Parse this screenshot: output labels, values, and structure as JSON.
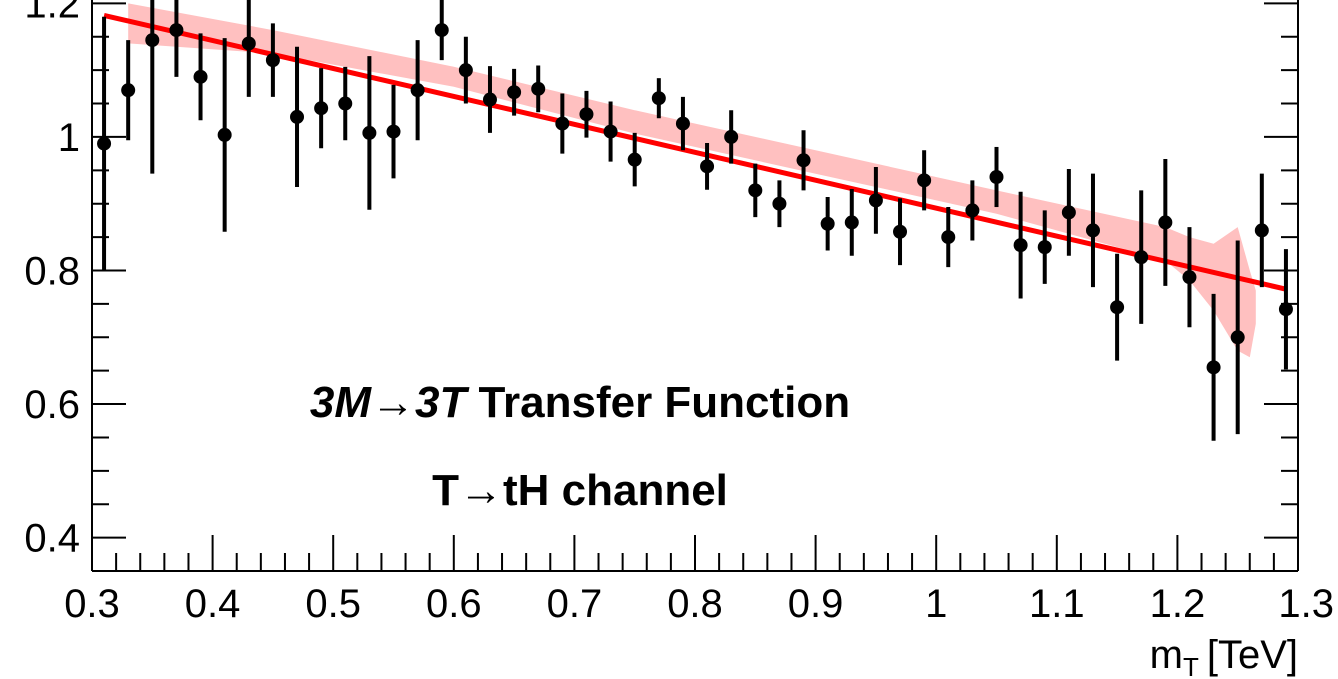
{
  "chart_data": {
    "type": "scatter",
    "title": "",
    "xlabel": "m_T [TeV]",
    "xlabel_main": "m",
    "xlabel_sub": "T",
    "xlabel_unit": "[TeV]",
    "ylabel": "",
    "xlim": [
      0.3,
      1.3
    ],
    "ylim": [
      0.35,
      1.235
    ],
    "x_ticks": [
      0.3,
      0.4,
      0.5,
      0.6,
      0.7,
      0.8,
      0.9,
      1.0,
      1.1,
      1.2,
      1.3
    ],
    "x_tick_labels": [
      "0.3",
      "0.4",
      "0.5",
      "0.6",
      "0.7",
      "0.8",
      "0.9",
      "1",
      "1.1",
      "1.2",
      "1.3"
    ],
    "y_ticks": [
      0.4,
      0.6,
      0.8,
      1.0,
      1.2
    ],
    "y_tick_labels": [
      "0.4",
      "0.6",
      "0.8",
      "1",
      "1.2"
    ],
    "annotations": {
      "line1_italic": "3M→3T",
      "line1_rest": " Transfer Function",
      "line2": "T→tH channel"
    },
    "series": [
      {
        "kind": "points_with_errors",
        "color": "#000000",
        "x": [
          0.31,
          0.33,
          0.35,
          0.37,
          0.39,
          0.41,
          0.43,
          0.45,
          0.47,
          0.49,
          0.51,
          0.53,
          0.55,
          0.57,
          0.59,
          0.61,
          0.63,
          0.65,
          0.67,
          0.69,
          0.71,
          0.73,
          0.75,
          0.77,
          0.79,
          0.81,
          0.83,
          0.85,
          0.87,
          0.89,
          0.91,
          0.93,
          0.95,
          0.97,
          0.99,
          1.01,
          1.03,
          1.05,
          1.07,
          1.09,
          1.11,
          1.13,
          1.15,
          1.17,
          1.19,
          1.21,
          1.23,
          1.25,
          1.27,
          1.29
        ],
        "y": [
          0.99,
          1.07,
          1.145,
          1.16,
          1.09,
          1.003,
          1.14,
          1.115,
          1.03,
          1.043,
          1.05,
          1.006,
          1.008,
          1.07,
          1.16,
          1.1,
          1.056,
          1.067,
          1.072,
          1.02,
          1.034,
          1.008,
          0.966,
          1.058,
          1.02,
          0.956,
          1.0,
          0.92,
          0.9,
          0.965,
          0.87,
          0.872,
          0.905,
          0.858,
          0.935,
          0.85,
          0.89,
          0.94,
          0.838,
          0.835,
          0.887,
          0.86,
          0.745,
          0.82,
          0.872,
          0.79,
          0.655,
          0.7,
          0.86,
          0.742
        ],
        "yerr": [
          0.19,
          0.075,
          0.2,
          0.07,
          0.065,
          0.145,
          0.08,
          0.055,
          0.105,
          0.06,
          0.055,
          0.115,
          0.07,
          0.075,
          0.045,
          0.05,
          0.05,
          0.035,
          0.035,
          0.045,
          0.035,
          0.045,
          0.04,
          0.03,
          0.04,
          0.035,
          0.04,
          0.04,
          0.035,
          0.045,
          0.04,
          0.05,
          0.05,
          0.05,
          0.045,
          0.045,
          0.045,
          0.045,
          0.08,
          0.055,
          0.065,
          0.085,
          0.08,
          0.1,
          0.095,
          0.075,
          0.11,
          0.145,
          0.085,
          0.09
        ]
      },
      {
        "kind": "fit_line",
        "color": "#ff0000",
        "x": [
          0.31,
          1.29
        ],
        "y": [
          1.182,
          0.772
        ]
      },
      {
        "kind": "uncertainty_band",
        "color": "#ffc0c0",
        "x": [
          0.33,
          0.45,
          0.6,
          0.75,
          0.9,
          1.05,
          1.19,
          1.21,
          1.23,
          1.25,
          1.26,
          1.265
        ],
        "upper": [
          1.2,
          1.16,
          1.105,
          1.04,
          0.98,
          0.92,
          0.865,
          0.85,
          0.84,
          0.865,
          0.8,
          0.77
        ],
        "lower": [
          1.14,
          1.125,
          1.075,
          1.005,
          0.945,
          0.885,
          0.815,
          0.785,
          0.74,
          0.68,
          0.67,
          0.72
        ]
      }
    ]
  }
}
